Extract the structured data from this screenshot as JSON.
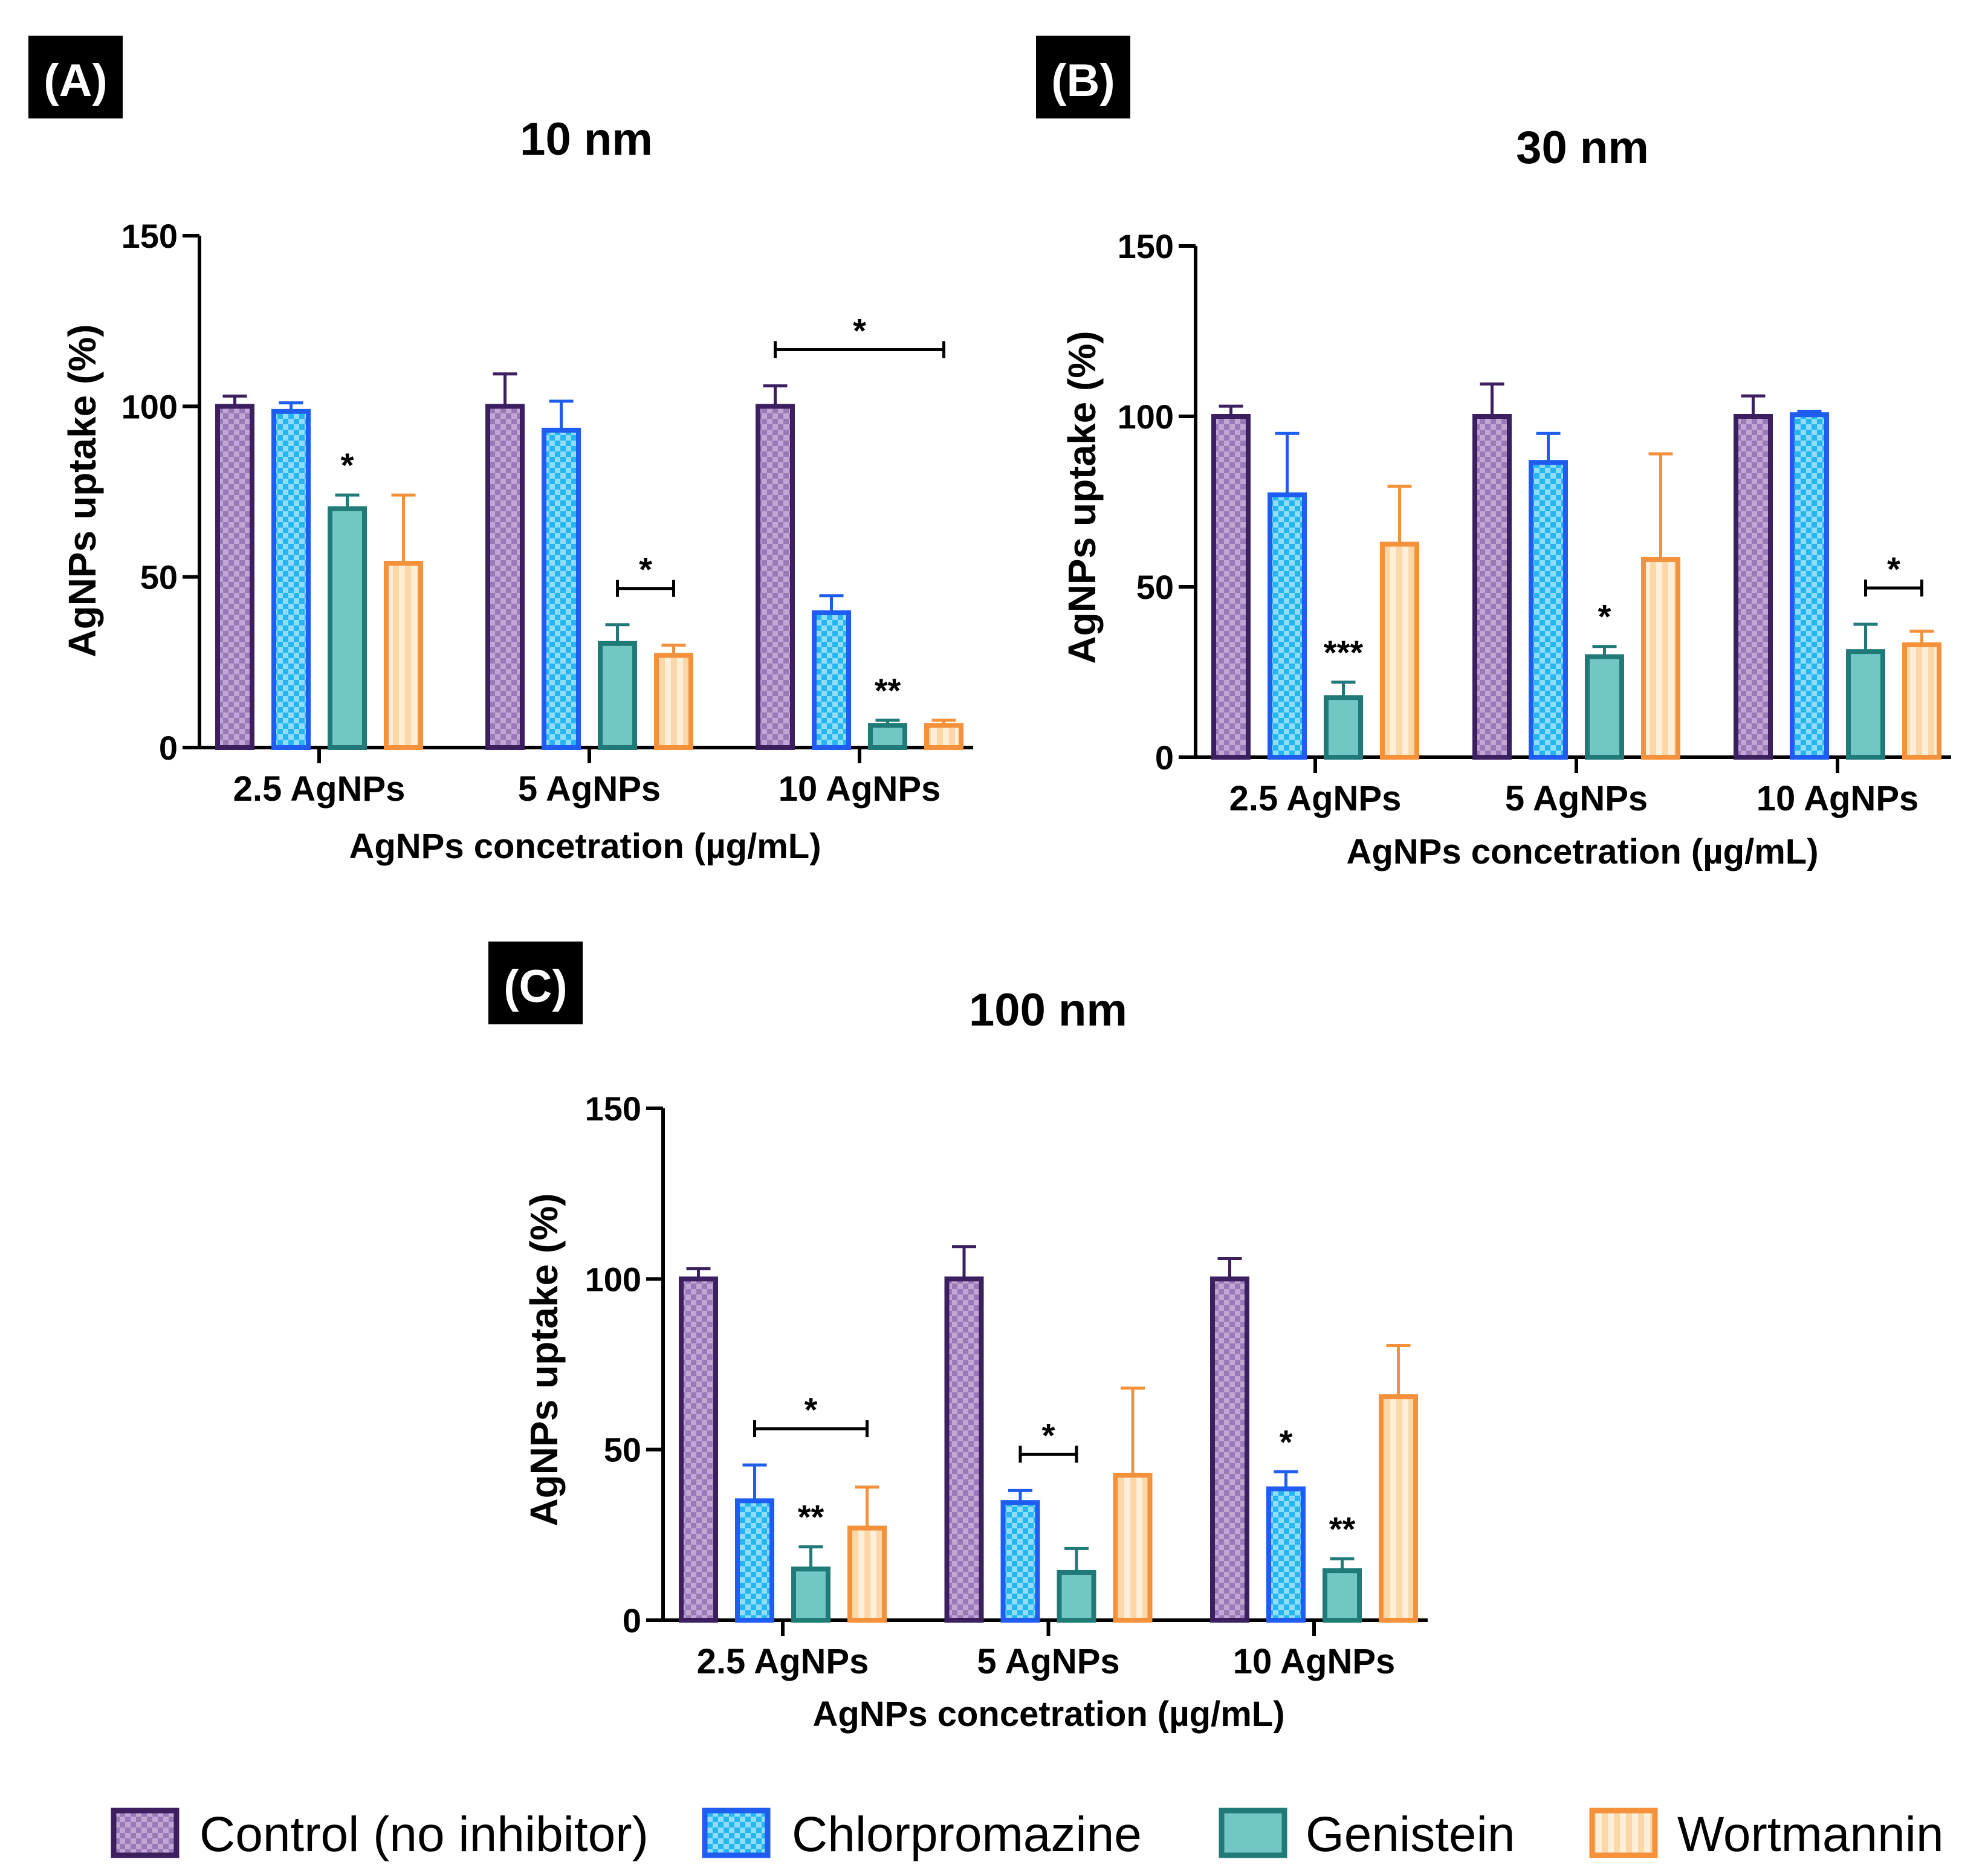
{
  "chart_data": [
    {
      "type": "bar",
      "panel_label": "(A)",
      "title": "10 nm",
      "xlabel": "AgNPs concetration (µg/mL)",
      "ylabel": "AgNPs uptake (%)",
      "ylim": [
        0,
        150
      ],
      "yticks": [
        "0",
        "50",
        "100",
        "150"
      ],
      "categories": [
        "2.5 AgNPs",
        "5 AgNPs",
        "10 AgNPs"
      ],
      "series": [
        {
          "name": "Control (no inhibitor)",
          "values": [
            100,
            100,
            100
          ],
          "errors": [
            3,
            9.5,
            6
          ]
        },
        {
          "name": "Chlorpromazine",
          "values": [
            98.5,
            93,
            39.5
          ],
          "errors": [
            2.5,
            8.5,
            5
          ]
        },
        {
          "name": "Genistein",
          "values": [
            70,
            30.5,
            6.5
          ],
          "errors": [
            4,
            5.5,
            1.5
          ]
        },
        {
          "name": "Wortmannin",
          "values": [
            54,
            27,
            6.5
          ],
          "errors": [
            20,
            3,
            1.5
          ]
        }
      ],
      "annotations": [
        {
          "text": "*",
          "category": 0,
          "series": 2
        },
        {
          "text": "*",
          "bracket": [
            1,
            2,
            1,
            3
          ]
        },
        {
          "text": "*",
          "bracket": [
            2,
            0,
            2,
            3
          ]
        },
        {
          "text": "**",
          "category": 2,
          "series": 2
        }
      ]
    },
    {
      "type": "bar",
      "panel_label": "(B)",
      "title": "30 nm",
      "xlabel": "AgNPs concetration (µg/mL)",
      "ylabel": "AgNPs uptake (%)",
      "ylim": [
        0,
        150
      ],
      "yticks": [
        "0",
        "50",
        "100",
        "150"
      ],
      "categories": [
        "2.5 AgNPs",
        "5 AgNPs",
        "10 AgNPs"
      ],
      "series": [
        {
          "name": "Control (no inhibitor)",
          "values": [
            100,
            100,
            100
          ],
          "errors": [
            3,
            9.5,
            6
          ]
        },
        {
          "name": "Chlorpromazine",
          "values": [
            77,
            86.5,
            100.5
          ],
          "errors": [
            18,
            8.5,
            1
          ]
        },
        {
          "name": "Genistein",
          "values": [
            17.5,
            29.5,
            31
          ],
          "errors": [
            4.5,
            3,
            8
          ]
        },
        {
          "name": "Wortmannin",
          "values": [
            62.5,
            58,
            33
          ],
          "errors": [
            17,
            31,
            4
          ]
        }
      ],
      "annotations": [
        {
          "text": "***",
          "category": 0,
          "series": 2
        },
        {
          "text": "*",
          "category": 1,
          "series": 2
        },
        {
          "text": "*",
          "bracket": [
            2,
            2,
            2,
            3
          ]
        }
      ]
    },
    {
      "type": "bar",
      "panel_label": "(C)",
      "title": "100 nm",
      "xlabel": "AgNPs concetration (µg/mL)",
      "ylabel": "AgNPs uptake (%)",
      "ylim": [
        0,
        150
      ],
      "yticks": [
        "0",
        "50",
        "100",
        "150"
      ],
      "categories": [
        "2.5 AgNPs",
        "5 AgNPs",
        "10 AgNPs"
      ],
      "series": [
        {
          "name": "Control (no inhibitor)",
          "values": [
            100,
            100,
            100
          ],
          "errors": [
            3,
            9.5,
            6
          ]
        },
        {
          "name": "Chlorpromazine",
          "values": [
            35,
            34.5,
            38.5
          ],
          "errors": [
            10.5,
            3.5,
            5
          ]
        },
        {
          "name": "Genistein",
          "values": [
            15,
            14,
            14.5
          ],
          "errors": [
            6.5,
            7,
            3.5
          ]
        },
        {
          "name": "Wortmannin",
          "values": [
            27,
            42.5,
            65.5
          ],
          "errors": [
            12,
            25.5,
            15
          ]
        }
      ],
      "annotations": [
        {
          "text": "*",
          "bracket": [
            0,
            1,
            0,
            3
          ]
        },
        {
          "text": "**",
          "category": 0,
          "series": 2
        },
        {
          "text": "*",
          "bracket": [
            1,
            1,
            1,
            2
          ]
        },
        {
          "text": "*",
          "category": 2,
          "series": 1
        },
        {
          "text": "**",
          "category": 2,
          "series": 2
        }
      ]
    }
  ],
  "legend": [
    {
      "label": "Control (no inhibitor)",
      "pattern": "checker"
    },
    {
      "label": "Chlorpromazine",
      "pattern": "checker"
    },
    {
      "label": "Genistein",
      "pattern": "plain"
    },
    {
      "label": "Wortmannin",
      "pattern": "vstripes"
    }
  ],
  "colors": {
    "control_stroke": "#3b1f5e",
    "control_fill": "#9a79b7",
    "control_fill_alt": "#c2a6d6",
    "chlor_stroke": "#1e5df0",
    "chlor_fill": "#27b5f0",
    "chlor_fill_alt": "#8fdcfb",
    "gen_stroke": "#1f7a78",
    "gen_fill": "#72c7c5",
    "wort_stroke": "#f5913a",
    "wort_fill": "#fcd8a9",
    "wort_fill_alt": "#ffefd9"
  }
}
